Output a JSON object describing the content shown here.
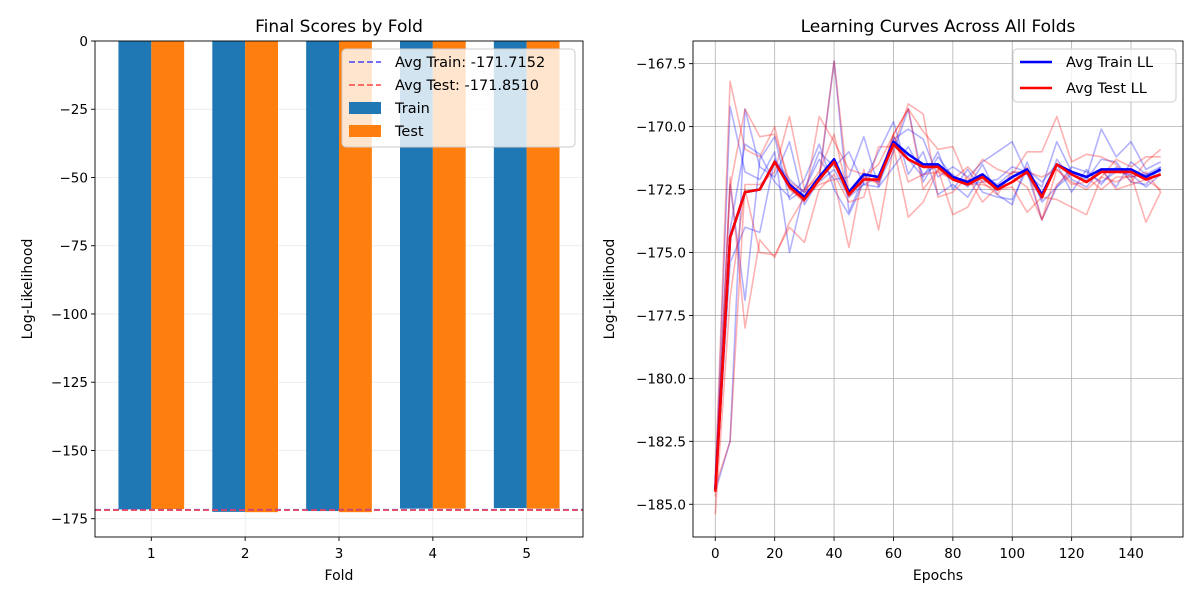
{
  "chart_data": [
    {
      "type": "bar",
      "title": "Final Scores by Fold",
      "xlabel": "Fold",
      "ylabel": "Log-Likelihood",
      "categories": [
        "1",
        "2",
        "3",
        "4",
        "5"
      ],
      "series": [
        {
          "name": "Train",
          "color": "#1f77b4",
          "values": [
            -171.6,
            -172.5,
            -172.2,
            -171.3,
            -171.1
          ]
        },
        {
          "name": "Test",
          "color": "#ff7f0e",
          "values": [
            -171.5,
            -172.6,
            -172.6,
            -171.3,
            -171.3
          ]
        }
      ],
      "reference_lines": [
        {
          "name": "Avg Train: -171.7152",
          "value": -171.7152,
          "color": "#4444ff",
          "style": "dashed"
        },
        {
          "name": "Avg Test: -171.8510",
          "value": -171.851,
          "color": "#ff4444",
          "style": "dashed"
        }
      ],
      "ylim": [
        -181.7,
        0
      ],
      "yticks": [
        0,
        -25,
        -50,
        -75,
        -100,
        -125,
        -150,
        -175
      ],
      "ytick_labels": [
        "0",
        "−25",
        "−50",
        "−75",
        "−100",
        "−125",
        "−150",
        "−175"
      ],
      "grid": true,
      "legend": "top-right"
    },
    {
      "type": "line",
      "title": "Learning Curves Across All Folds",
      "xlabel": "Epochs",
      "ylabel": "Log-Likelihood",
      "x": [
        0,
        5,
        10,
        15,
        20,
        25,
        30,
        35,
        40,
        45,
        50,
        55,
        60,
        65,
        70,
        75,
        80,
        85,
        90,
        95,
        100,
        105,
        110,
        115,
        120,
        125,
        130,
        135,
        140,
        145,
        150
      ],
      "xlim": [
        -7.5,
        157.5
      ],
      "ylim": [
        -186.3,
        -166.6
      ],
      "xticks": [
        0,
        20,
        40,
        60,
        80,
        100,
        120,
        140
      ],
      "yticks": [
        -167.5,
        -170.0,
        -172.5,
        -175.0,
        -177.5,
        -180.0,
        -182.5,
        -185.0
      ],
      "ytick_labels": [
        "−167.5",
        "−170.0",
        "−172.5",
        "−175.0",
        "−177.5",
        "−180.0",
        "−182.5",
        "−185.0"
      ],
      "grid": true,
      "legend": "top-right",
      "series": [
        {
          "name": "Avg Train LL",
          "color": "#0000ff",
          "values": [
            -184.4,
            -174.4,
            -172.6,
            -172.5,
            -171.4,
            -172.3,
            -172.8,
            -172.0,
            -171.3,
            -172.6,
            -171.9,
            -172.0,
            -170.6,
            -171.1,
            -171.5,
            -171.5,
            -172.0,
            -172.2,
            -171.9,
            -172.4,
            -172.0,
            -171.7,
            -172.7,
            -171.5,
            -171.8,
            -172.0,
            -171.7,
            -171.7,
            -171.7,
            -172.0,
            -171.7
          ]
        },
        {
          "name": "Avg Test LL",
          "color": "#ff0000",
          "values": [
            -184.5,
            -174.4,
            -172.6,
            -172.5,
            -171.4,
            -172.4,
            -172.9,
            -172.1,
            -171.4,
            -172.7,
            -172.1,
            -172.1,
            -170.7,
            -171.3,
            -171.6,
            -171.6,
            -172.1,
            -172.3,
            -172.0,
            -172.5,
            -172.2,
            -171.8,
            -172.8,
            -171.5,
            -171.9,
            -172.2,
            -171.8,
            -171.8,
            -171.8,
            -172.1,
            -171.9
          ]
        }
      ],
      "fold_train_series": [
        {
          "color": "#0000ff",
          "values": [
            -184.3,
            -169.2,
            -171.8,
            -172.1,
            -171.0,
            -175.0,
            -172.5,
            -171.0,
            -171.6,
            -171.0,
            -172.3,
            -172.0,
            -170.5,
            -170.1,
            -170.5,
            -172.0,
            -171.6,
            -172.0,
            -171.4,
            -171.0,
            -170.6,
            -171.9,
            -172.4,
            -170.6,
            -171.8,
            -172.0,
            -170.1,
            -171.2,
            -170.6,
            -171.7,
            -171.4
          ]
        },
        {
          "color": "#0000ff",
          "values": [
            -184.3,
            -172.3,
            -176.9,
            -171.3,
            -170.4,
            -172.9,
            -172.5,
            -171.3,
            -172.1,
            -172.0,
            -170.4,
            -172.4,
            -170.4,
            -171.3,
            -172.0,
            -171.0,
            -172.5,
            -171.7,
            -172.6,
            -172.8,
            -172.9,
            -171.7,
            -172.2,
            -171.5,
            -172.6,
            -171.7,
            -172.3,
            -171.6,
            -172.0,
            -171.9,
            -171.6
          ]
        },
        {
          "color": "#0000ff",
          "values": [
            -184.4,
            -174.1,
            -170.7,
            -171.1,
            -172.2,
            -172.8,
            -172.1,
            -170.7,
            -172.5,
            -173.5,
            -172.2,
            -171.0,
            -169.8,
            -171.9,
            -171.0,
            -172.7,
            -172.3,
            -172.8,
            -171.9,
            -172.3,
            -171.8,
            -171.9,
            -172.9,
            -171.3,
            -172.1,
            -172.4,
            -171.7,
            -172.4,
            -171.4,
            -171.9,
            -171.8
          ]
        },
        {
          "color": "#0000ff",
          "values": [
            -184.5,
            -175.4,
            -174.0,
            -174.2,
            -171.3,
            -172.1,
            -172.6,
            -172.2,
            -171.7,
            -172.8,
            -172.3,
            -172.4,
            -171.6,
            -170.8,
            -171.9,
            -171.5,
            -171.9,
            -172.4,
            -171.5,
            -172.7,
            -173.1,
            -171.4,
            -173.0,
            -172.4,
            -171.6,
            -171.8,
            -172.2,
            -171.8,
            -171.9,
            -172.4,
            -171.9
          ]
        },
        {
          "color": "#0000ff",
          "values": [
            -184.5,
            -182.5,
            -169.3,
            -171.6,
            -172.0,
            -170.6,
            -173.1,
            -172.1,
            -167.4,
            -173.4,
            -172.0,
            -172.2,
            -171.0,
            -169.3,
            -172.2,
            -171.2,
            -172.0,
            -172.3,
            -172.2,
            -172.1,
            -171.6,
            -171.8,
            -173.7,
            -172.4,
            -171.9,
            -172.1,
            -171.3,
            -171.4,
            -172.2,
            -172.3,
            -171.6
          ]
        }
      ],
      "fold_test_series": [
        {
          "color": "#ff0000",
          "values": [
            -184.0,
            -168.2,
            -170.9,
            -171.2,
            -170.0,
            -172.5,
            -173.0,
            -169.6,
            -170.6,
            -171.7,
            -171.9,
            -172.3,
            -170.3,
            -169.3,
            -170.2,
            -170.9,
            -170.8,
            -172.2,
            -171.3,
            -171.7,
            -171.9,
            -171.0,
            -171.0,
            -169.6,
            -171.4,
            -171.1,
            -171.2,
            -171.5,
            -172.2,
            -171.4,
            -170.9
          ]
        },
        {
          "color": "#ff0000",
          "values": [
            -184.7,
            -172.0,
            -178.0,
            -174.5,
            -175.2,
            -173.8,
            -172.8,
            -172.3,
            -172.1,
            -174.8,
            -171.7,
            -174.1,
            -170.8,
            -173.6,
            -173.0,
            -171.7,
            -173.5,
            -173.2,
            -172.1,
            -172.5,
            -172.4,
            -173.4,
            -172.8,
            -172.9,
            -173.2,
            -173.5,
            -172.0,
            -172.2,
            -171.9,
            -173.8,
            -172.6
          ]
        },
        {
          "color": "#ff0000",
          "values": [
            -185.4,
            -176.8,
            -172.5,
            -175.0,
            -175.1,
            -174.0,
            -174.6,
            -172.5,
            -171.9,
            -173.0,
            -172.8,
            -170.8,
            -170.8,
            -169.1,
            -169.5,
            -172.8,
            -172.6,
            -172.0,
            -173.0,
            -172.4,
            -172.0,
            -172.4,
            -173.7,
            -172.3,
            -171.8,
            -172.0,
            -172.5,
            -172.0,
            -172.0,
            -171.8,
            -172.6
          ]
        },
        {
          "color": "#ff0000",
          "values": [
            -184.1,
            -172.4,
            -169.3,
            -170.4,
            -170.3,
            -172.2,
            -172.6,
            -171.8,
            -170.3,
            -172.8,
            -172.0,
            -171.5,
            -170.3,
            -172.2,
            -171.9,
            -171.8,
            -172.1,
            -171.6,
            -172.2,
            -172.7,
            -171.8,
            -171.8,
            -172.0,
            -171.7,
            -172.2,
            -172.5,
            -172.0,
            -171.3,
            -171.6,
            -171.2,
            -171.2
          ]
        },
        {
          "color": "#ff0000",
          "values": [
            -184.3,
            -182.5,
            -172.3,
            -172.3,
            -171.8,
            -169.6,
            -172.5,
            -172.0,
            -167.4,
            -172.7,
            -172.1,
            -172.2,
            -170.3,
            -169.3,
            -172.5,
            -171.7,
            -172.1,
            -172.3,
            -172.3,
            -172.5,
            -172.2,
            -171.6,
            -173.7,
            -171.7,
            -172.3,
            -172.2,
            -171.7,
            -172.5,
            -172.3,
            -172.1,
            -172.5
          ]
        }
      ]
    }
  ]
}
